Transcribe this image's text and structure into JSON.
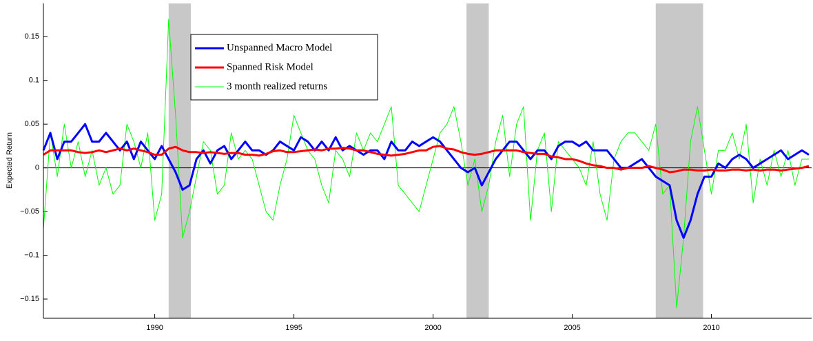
{
  "chart_data": {
    "type": "line",
    "y_label": "Expected Return",
    "xlim": [
      1986,
      2013.6
    ],
    "ylim": [
      -0.172,
      0.188
    ],
    "xticks": [
      1990,
      1995,
      2000,
      2005,
      2010
    ],
    "yticks": [
      {
        "value": -0.15,
        "label": "−0.15"
      },
      {
        "value": -0.1,
        "label": "−0.1"
      },
      {
        "value": -0.05,
        "label": "−0.05"
      },
      0,
      0.05,
      0.1,
      0.15
    ],
    "reference_line": 0,
    "shaded_regions": [
      [
        1990.5,
        1991.3
      ],
      [
        2001.2,
        2002.0
      ],
      [
        2008.0,
        2009.7
      ]
    ],
    "shade_color": "#c8c8c8",
    "legend": "upper left",
    "x": [
      1986,
      1986.25,
      1986.5,
      1986.75,
      1987,
      1987.25,
      1987.5,
      1987.75,
      1988,
      1988.25,
      1988.5,
      1988.75,
      1989,
      1989.25,
      1989.5,
      1989.75,
      1990,
      1990.25,
      1990.5,
      1990.75,
      1991,
      1991.25,
      1991.5,
      1991.75,
      1992,
      1992.25,
      1992.5,
      1992.75,
      1993,
      1993.25,
      1993.5,
      1993.75,
      1994,
      1994.25,
      1994.5,
      1994.75,
      1995,
      1995.25,
      1995.5,
      1995.75,
      1996,
      1996.25,
      1996.5,
      1996.75,
      1997,
      1997.25,
      1997.5,
      1997.75,
      1998,
      1998.25,
      1998.5,
      1998.75,
      1999,
      1999.25,
      1999.5,
      1999.75,
      2000,
      2000.25,
      2000.5,
      2000.75,
      2001,
      2001.25,
      2001.5,
      2001.75,
      2002,
      2002.25,
      2002.5,
      2002.75,
      2003,
      2003.25,
      2003.5,
      2003.75,
      2004,
      2004.25,
      2004.5,
      2004.75,
      2005,
      2005.25,
      2005.5,
      2005.75,
      2006,
      2006.25,
      2006.5,
      2006.75,
      2007,
      2007.25,
      2007.5,
      2007.75,
      2008,
      2008.25,
      2008.5,
      2008.75,
      2009,
      2009.25,
      2009.5,
      2009.75,
      2010,
      2010.25,
      2010.5,
      2010.75,
      2011,
      2011.25,
      2011.5,
      2011.75,
      2012,
      2012.25,
      2012.5,
      2012.75,
      2013,
      2013.25,
      2013.5
    ],
    "series": [
      {
        "name": "3 month realized returns",
        "color": "#00ff00",
        "width": 1,
        "values": [
          -0.07,
          0.04,
          -0.01,
          0.05,
          0.0,
          0.03,
          -0.01,
          0.02,
          -0.02,
          0.0,
          -0.03,
          -0.02,
          0.05,
          0.03,
          0.0,
          0.04,
          -0.06,
          -0.03,
          0.17,
          0.06,
          -0.08,
          -0.05,
          -0.01,
          0.03,
          0.02,
          -0.03,
          -0.02,
          0.04,
          0.01,
          0.02,
          0.01,
          -0.02,
          -0.05,
          -0.06,
          -0.02,
          0.01,
          0.06,
          0.04,
          0.02,
          0.01,
          -0.02,
          -0.04,
          0.02,
          0.01,
          -0.01,
          0.04,
          0.02,
          0.04,
          0.03,
          0.05,
          0.07,
          -0.02,
          -0.03,
          -0.04,
          -0.05,
          -0.02,
          0.01,
          0.04,
          0.05,
          0.07,
          0.03,
          -0.02,
          0.01,
          -0.05,
          -0.02,
          0.03,
          0.06,
          -0.01,
          0.05,
          0.07,
          -0.06,
          0.02,
          0.04,
          -0.05,
          0.03,
          0.02,
          0.01,
          0.0,
          -0.02,
          0.03,
          -0.03,
          -0.06,
          0.01,
          0.03,
          0.04,
          0.04,
          0.03,
          0.02,
          0.05,
          -0.03,
          -0.02,
          -0.16,
          -0.08,
          0.03,
          0.07,
          0.02,
          -0.03,
          0.02,
          0.02,
          0.04,
          0.01,
          0.05,
          -0.04,
          0.01,
          -0.02,
          0.02,
          -0.01,
          0.02,
          -0.02,
          0.01,
          0.01
        ]
      },
      {
        "name": "Unspanned Macro Model",
        "color": "#0000ff",
        "width": 3,
        "values": [
          0.02,
          0.04,
          0.01,
          0.03,
          0.03,
          0.04,
          0.05,
          0.03,
          0.03,
          0.04,
          0.03,
          0.02,
          0.03,
          0.01,
          0.03,
          0.02,
          0.01,
          0.025,
          0.01,
          -0.005,
          -0.025,
          -0.02,
          0.01,
          0.02,
          0.005,
          0.02,
          0.025,
          0.01,
          0.02,
          0.03,
          0.02,
          0.02,
          0.015,
          0.02,
          0.03,
          0.025,
          0.02,
          0.035,
          0.03,
          0.02,
          0.03,
          0.02,
          0.035,
          0.02,
          0.025,
          0.02,
          0.015,
          0.02,
          0.02,
          0.01,
          0.03,
          0.02,
          0.02,
          0.03,
          0.025,
          0.03,
          0.035,
          0.03,
          0.02,
          0.01,
          0.0,
          -0.005,
          0.0,
          -0.02,
          -0.005,
          0.01,
          0.02,
          0.03,
          0.03,
          0.02,
          0.01,
          0.02,
          0.02,
          0.01,
          0.025,
          0.03,
          0.03,
          0.025,
          0.03,
          0.02,
          0.02,
          0.02,
          0.01,
          0.0,
          0.0,
          0.005,
          0.01,
          0.0,
          -0.01,
          -0.015,
          -0.02,
          -0.06,
          -0.08,
          -0.06,
          -0.03,
          -0.01,
          -0.01,
          0.005,
          0.0,
          0.01,
          0.015,
          0.01,
          0.0,
          0.005,
          0.01,
          0.015,
          0.02,
          0.01,
          0.015,
          0.02,
          0.015
        ]
      },
      {
        "name": "Spanned Risk Model",
        "color": "#ff0000",
        "width": 3,
        "values": [
          0.015,
          0.02,
          0.02,
          0.02,
          0.02,
          0.018,
          0.017,
          0.018,
          0.02,
          0.018,
          0.02,
          0.022,
          0.02,
          0.022,
          0.02,
          0.018,
          0.015,
          0.015,
          0.022,
          0.024,
          0.02,
          0.018,
          0.018,
          0.017,
          0.018,
          0.017,
          0.016,
          0.017,
          0.017,
          0.015,
          0.015,
          0.014,
          0.016,
          0.019,
          0.02,
          0.018,
          0.018,
          0.019,
          0.02,
          0.021,
          0.02,
          0.022,
          0.022,
          0.023,
          0.022,
          0.02,
          0.02,
          0.018,
          0.016,
          0.015,
          0.014,
          0.015,
          0.016,
          0.018,
          0.02,
          0.02,
          0.024,
          0.025,
          0.022,
          0.021,
          0.018,
          0.016,
          0.015,
          0.016,
          0.018,
          0.02,
          0.02,
          0.02,
          0.02,
          0.018,
          0.017,
          0.016,
          0.016,
          0.013,
          0.012,
          0.01,
          0.01,
          0.008,
          0.005,
          0.003,
          0.002,
          0.0,
          0.0,
          -0.002,
          0.0,
          0.0,
          0.0,
          0.002,
          0.0,
          -0.002,
          -0.005,
          -0.004,
          -0.002,
          -0.002,
          -0.003,
          -0.003,
          -0.002,
          -0.003,
          -0.003,
          -0.002,
          -0.002,
          -0.003,
          -0.002,
          -0.003,
          -0.002,
          -0.002,
          -0.003,
          -0.002,
          -0.001,
          0.0,
          0.002
        ]
      }
    ]
  }
}
